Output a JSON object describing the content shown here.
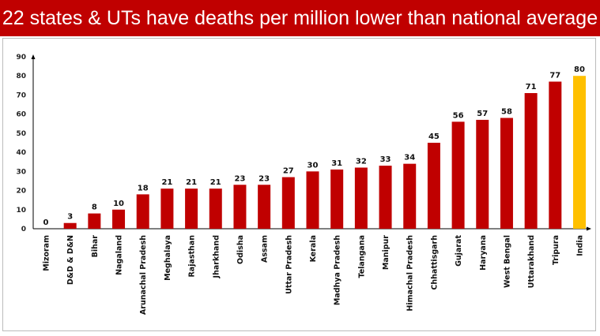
{
  "chart_data": {
    "type": "bar",
    "title": "22 states & UTs have deaths per million lower than national average",
    "xlabel": "",
    "ylabel": "",
    "ylim": [
      0,
      90
    ],
    "yticks": [
      0,
      10,
      20,
      30,
      40,
      50,
      60,
      70,
      80,
      90
    ],
    "grid": false,
    "categories": [
      "Mizoram",
      "D&D & D&N",
      "Bihar",
      "Nagaland",
      "Arunachal Pradesh",
      "Meghalaya",
      "Rajasthan",
      "Jharkhand",
      "Odisha",
      "Assam",
      "Uttar Pradesh",
      "Kerala",
      "Madhya Pradesh",
      "Telangana",
      "Manipur",
      "Himachal Pradesh",
      "Chhattisgarh",
      "Gujarat",
      "Haryana",
      "West Bengal",
      "Uttarakhand",
      "Tripura",
      "India"
    ],
    "values": [
      0,
      3,
      8,
      10,
      18,
      21,
      21,
      21,
      23,
      23,
      27,
      30,
      31,
      32,
      33,
      34,
      45,
      56,
      57,
      58,
      71,
      77,
      80
    ],
    "colors": {
      "state": "#c00000",
      "national": "#ffc000",
      "title_bg": "#c00000"
    }
  }
}
